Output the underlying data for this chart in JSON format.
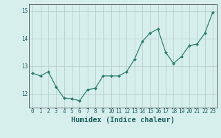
{
  "x": [
    0,
    1,
    2,
    3,
    4,
    5,
    6,
    7,
    8,
    9,
    10,
    11,
    12,
    13,
    14,
    15,
    16,
    17,
    18,
    19,
    20,
    21,
    22,
    23
  ],
  "y": [
    12.75,
    12.65,
    12.8,
    12.25,
    11.85,
    11.82,
    11.75,
    12.15,
    12.2,
    12.65,
    12.65,
    12.65,
    12.8,
    13.25,
    13.9,
    14.2,
    14.35,
    13.5,
    13.1,
    13.35,
    13.75,
    13.8,
    14.2,
    14.95
  ],
  "xlabel": "Humidex (Indice chaleur)",
  "line_color": "#2a7f6f",
  "marker": "D",
  "marker_size": 2.0,
  "bg_color": "#d6eeec",
  "grid_color": "#b8cece",
  "ylim": [
    11.5,
    15.25
  ],
  "xlim": [
    -0.5,
    23.5
  ],
  "yticks": [
    12,
    13,
    14,
    15
  ],
  "xticks": [
    0,
    1,
    2,
    3,
    4,
    5,
    6,
    7,
    8,
    9,
    10,
    11,
    12,
    13,
    14,
    15,
    16,
    17,
    18,
    19,
    20,
    21,
    22,
    23
  ],
  "tick_label_fontsize": 5.5,
  "xlabel_fontsize": 7.5,
  "tick_color": "#1a6060",
  "spine_color": "#555555"
}
